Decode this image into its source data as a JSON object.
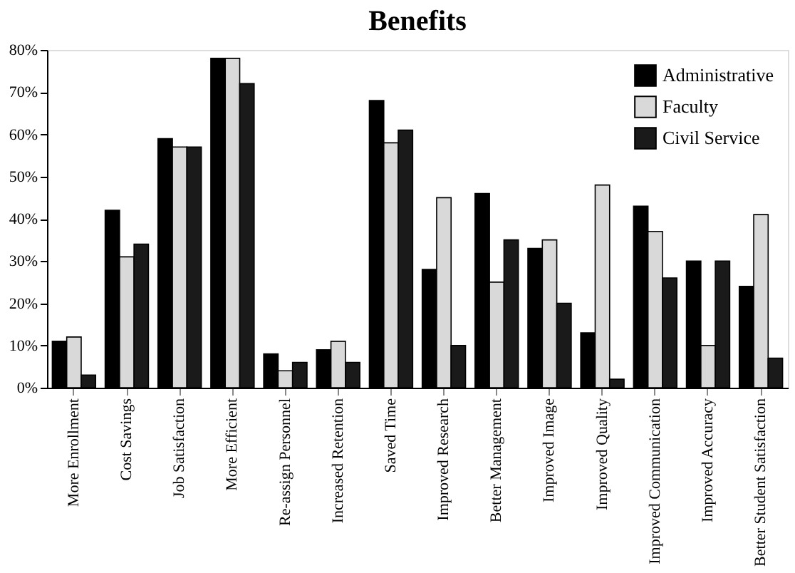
{
  "chart_data": {
    "type": "bar",
    "title": "Benefits",
    "categories": [
      "More Enrollment",
      "Cost Savings",
      "Job Satisfaction",
      "More Efficient",
      "Re-assign Personnel",
      "Increased Retention",
      "Saved Time",
      "Improved Research",
      "Better Management",
      "Improved Image",
      "Improved Quality",
      "Improved Communication",
      "Improved Accuracy",
      "Better Student Satisfaction"
    ],
    "series": [
      {
        "name": "Administrative",
        "color": "#000000",
        "values": [
          11,
          42,
          59,
          78,
          8,
          9,
          68,
          28,
          46,
          33,
          13,
          43,
          30,
          24
        ]
      },
      {
        "name": "Faculty",
        "color": "#d9d9d9",
        "values": [
          12,
          31,
          57,
          78,
          4,
          11,
          58,
          45,
          25,
          35,
          48,
          37,
          10,
          41
        ]
      },
      {
        "name": "Civil Service",
        "color": "#1a1a1a",
        "values": [
          3,
          34,
          57,
          72,
          6,
          6,
          61,
          10,
          35,
          20,
          2,
          26,
          30,
          7
        ]
      }
    ],
    "ylim": [
      0,
      80
    ],
    "yticks": [
      {
        "value": 0,
        "label": "0%"
      },
      {
        "value": 10,
        "label": "10%"
      },
      {
        "value": 20,
        "label": "20%"
      },
      {
        "value": 30,
        "label": "30%"
      },
      {
        "value": 40,
        "label": "40%"
      },
      {
        "value": 50,
        "label": "50%"
      },
      {
        "value": 60,
        "label": "60%"
      },
      {
        "value": 70,
        "label": "70%"
      },
      {
        "value": 80,
        "label": "80%"
      }
    ],
    "legend": "top right",
    "grid": false
  }
}
